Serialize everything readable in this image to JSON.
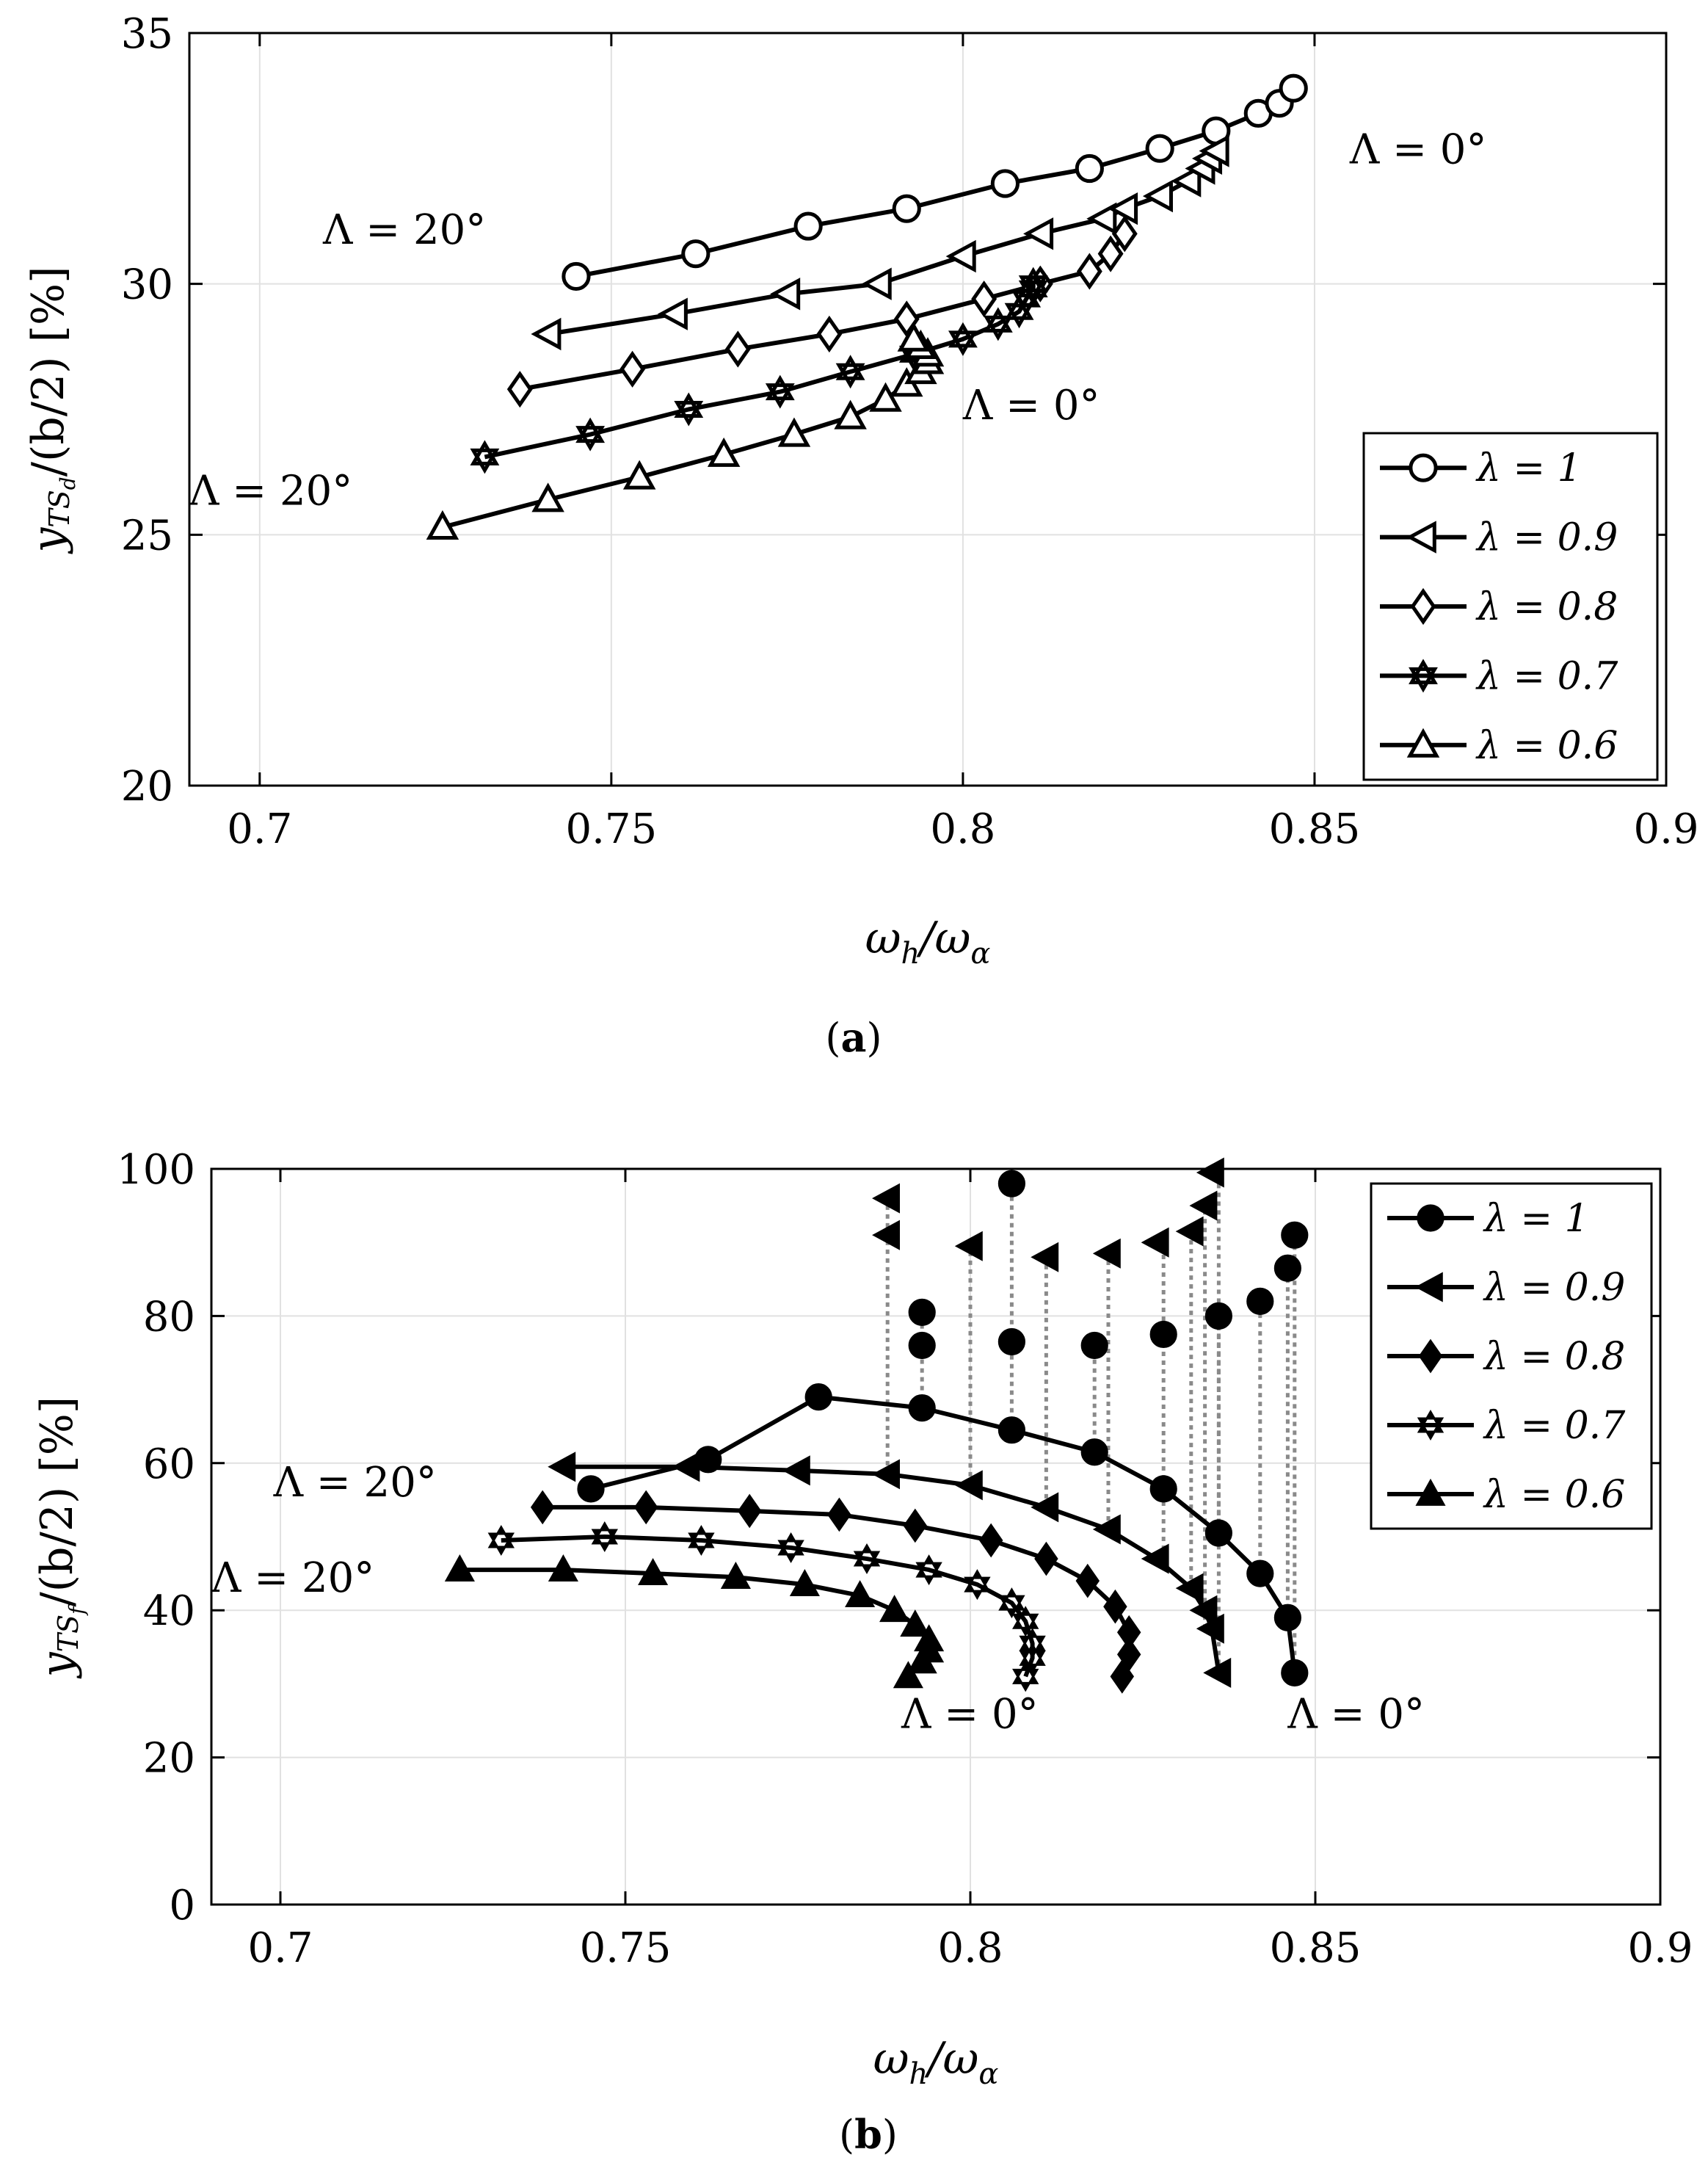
{
  "chart_data": [
    {
      "id": "a",
      "type": "line",
      "caption_label": "a",
      "xlabel": "ω_h/ω_α",
      "ylabel": "y_TS_d/(b/2) [%]",
      "xlim": [
        0.69,
        0.9
      ],
      "ylim": [
        20,
        35
      ],
      "xticks": [
        "0.7",
        "0.75",
        "0.8",
        "0.85",
        "0.9"
      ],
      "xtick_values": [
        0.7,
        0.75,
        0.8,
        0.85,
        0.9
      ],
      "yticks": [
        "20",
        "25",
        "30",
        "35"
      ],
      "ytick_values": [
        20,
        25,
        30,
        35
      ],
      "grid": true,
      "legend_position": "bottom-right",
      "annotations": [
        {
          "text": "Λ = 20°",
          "x": 0.709,
          "y": 30.8
        },
        {
          "text": "Λ = 0°",
          "x": 0.855,
          "y": 32.4
        },
        {
          "text": "Λ = 0°",
          "x": 0.8,
          "y": 27.3
        },
        {
          "text": "Λ = 20°",
          "x": 0.69,
          "y": 25.6
        }
      ],
      "series": [
        {
          "name": "λ = 1",
          "marker": "circle",
          "filled": false,
          "x": [
            0.745,
            0.762,
            0.778,
            0.792,
            0.806,
            0.818,
            0.828,
            0.836,
            0.842,
            0.845,
            0.847
          ],
          "y": [
            30.15,
            30.6,
            31.15,
            31.5,
            32.0,
            32.3,
            32.7,
            33.05,
            33.4,
            33.6,
            33.9
          ]
        },
        {
          "name": "λ = 0.9",
          "marker": "triangle-left",
          "filled": false,
          "x": [
            0.741,
            0.759,
            0.775,
            0.788,
            0.8,
            0.811,
            0.82,
            0.823,
            0.828,
            0.832,
            0.834,
            0.835,
            0.836
          ],
          "y": [
            29.0,
            29.4,
            29.8,
            30.0,
            30.55,
            31.0,
            31.3,
            31.5,
            31.75,
            32.05,
            32.3,
            32.5,
            32.65
          ]
        },
        {
          "name": "λ = 0.8",
          "marker": "diamond",
          "filled": false,
          "x": [
            0.737,
            0.753,
            0.768,
            0.781,
            0.792,
            0.803,
            0.811,
            0.818,
            0.821,
            0.823
          ],
          "y": [
            27.9,
            28.3,
            28.7,
            29.0,
            29.3,
            29.7,
            30.0,
            30.25,
            30.6,
            31.0
          ]
        },
        {
          "name": "λ = 0.7",
          "marker": "hexagram",
          "filled": false,
          "x": [
            0.732,
            0.747,
            0.761,
            0.774,
            0.784,
            0.793,
            0.8,
            0.805,
            0.808,
            0.809,
            0.81,
            0.81
          ],
          "y": [
            26.55,
            27.0,
            27.5,
            27.85,
            28.25,
            28.6,
            28.9,
            29.2,
            29.45,
            29.7,
            29.9,
            30.0
          ]
        },
        {
          "name": "λ = 0.6",
          "marker": "triangle-up",
          "filled": false,
          "x": [
            0.726,
            0.741,
            0.754,
            0.766,
            0.776,
            0.784,
            0.789,
            0.792,
            0.794,
            0.795,
            0.795,
            0.794,
            0.793
          ],
          "y": [
            25.15,
            25.7,
            26.15,
            26.6,
            27.0,
            27.35,
            27.7,
            28.0,
            28.25,
            28.45,
            28.6,
            28.75,
            28.9
          ]
        }
      ]
    },
    {
      "id": "b",
      "type": "line",
      "caption_label": "b",
      "xlabel": "ω_h/ω_α",
      "ylabel": "y_TS_f/(b/2) [%]",
      "xlim": [
        0.69,
        0.9
      ],
      "ylim": [
        0,
        100
      ],
      "xticks": [
        "0.7",
        "0.75",
        "0.8",
        "0.85",
        "0.9"
      ],
      "xtick_values": [
        0.7,
        0.75,
        0.8,
        0.85,
        0.9
      ],
      "yticks": [
        "0",
        "20",
        "40",
        "60",
        "80",
        "100"
      ],
      "ytick_values": [
        0,
        20,
        40,
        60,
        80,
        100
      ],
      "grid": true,
      "legend_position": "top-right",
      "annotations": [
        {
          "text": "Λ = 20°",
          "x": 0.699,
          "y": 55.5
        },
        {
          "text": "Λ = 20°",
          "x": 0.69,
          "y": 42.5
        },
        {
          "text": "Λ = 0°",
          "x": 0.79,
          "y": 24.0
        },
        {
          "text": "Λ = 0°",
          "x": 0.846,
          "y": 24.0
        }
      ],
      "series": [
        {
          "name": "λ = 1",
          "marker": "circle",
          "filled": true,
          "x": [
            0.745,
            0.762,
            0.778,
            0.793,
            0.806,
            0.818,
            0.828,
            0.836,
            0.842,
            0.846,
            0.847
          ],
          "y": [
            56.5,
            60.5,
            69.0,
            67.5,
            64.5,
            61.5,
            56.5,
            50.5,
            45.0,
            39.0,
            31.5
          ]
        },
        {
          "name": "λ = 0.9",
          "marker": "triangle-left",
          "filled": true,
          "x": [
            0.741,
            0.759,
            0.775,
            0.788,
            0.8,
            0.811,
            0.82,
            0.827,
            0.832,
            0.834,
            0.835,
            0.836
          ],
          "y": [
            59.5,
            59.5,
            59.0,
            58.5,
            57.0,
            54.0,
            51.0,
            47.0,
            43.0,
            40.0,
            37.5,
            31.5
          ]
        },
        {
          "name": "λ = 0.8",
          "marker": "diamond",
          "filled": true,
          "x": [
            0.738,
            0.753,
            0.768,
            0.781,
            0.792,
            0.803,
            0.811,
            0.817,
            0.821,
            0.823,
            0.823,
            0.822
          ],
          "y": [
            54.0,
            54.0,
            53.5,
            53.0,
            51.5,
            49.5,
            47.0,
            44.0,
            40.5,
            37.0,
            34.0,
            31.0
          ]
        },
        {
          "name": "λ = 0.7",
          "marker": "hexagram",
          "filled": true,
          "x": [
            0.732,
            0.747,
            0.761,
            0.774,
            0.785,
            0.794,
            0.801,
            0.806,
            0.808,
            0.809,
            0.809,
            0.808
          ],
          "y": [
            49.5,
            50.0,
            49.5,
            48.5,
            47.0,
            45.5,
            43.5,
            41.0,
            38.5,
            35.5,
            33.5,
            31.0
          ]
        },
        {
          "name": "λ = 0.6",
          "marker": "triangle-up",
          "filled": true,
          "x": [
            0.726,
            0.741,
            0.754,
            0.766,
            0.776,
            0.784,
            0.789,
            0.792,
            0.794,
            0.794,
            0.793,
            0.791
          ],
          "y": [
            45.5,
            45.5,
            45.0,
            44.5,
            43.5,
            42.0,
            40.0,
            38.0,
            36.0,
            34.5,
            33.0,
            31.0
          ]
        }
      ],
      "detached_points": [
        {
          "series": "λ = 1",
          "x": 0.793,
          "y": 80.5
        },
        {
          "series": "λ = 1",
          "x": 0.793,
          "y": 76.0
        },
        {
          "series": "λ = 1",
          "x": 0.806,
          "y": 98.0
        },
        {
          "series": "λ = 1",
          "x": 0.806,
          "y": 76.5
        },
        {
          "series": "λ = 1",
          "x": 0.818,
          "y": 76.0
        },
        {
          "series": "λ = 1",
          "x": 0.828,
          "y": 77.5
        },
        {
          "series": "λ = 1",
          "x": 0.836,
          "y": 80.0
        },
        {
          "series": "λ = 1",
          "x": 0.842,
          "y": 82.0
        },
        {
          "series": "λ = 1",
          "x": 0.846,
          "y": 86.5
        },
        {
          "series": "λ = 1",
          "x": 0.847,
          "y": 91.0
        },
        {
          "series": "λ = 0.9",
          "x": 0.788,
          "y": 96.0
        },
        {
          "series": "λ = 0.9",
          "x": 0.788,
          "y": 91.0
        },
        {
          "series": "λ = 0.9",
          "x": 0.8,
          "y": 89.5
        },
        {
          "series": "λ = 0.9",
          "x": 0.811,
          "y": 88.0
        },
        {
          "series": "λ = 0.9",
          "x": 0.82,
          "y": 88.5
        },
        {
          "series": "λ = 0.9",
          "x": 0.827,
          "y": 90.0
        },
        {
          "series": "λ = 0.9",
          "x": 0.832,
          "y": 91.5
        },
        {
          "series": "λ = 0.9",
          "x": 0.834,
          "y": 95.0
        },
        {
          "series": "λ = 0.9",
          "x": 0.835,
          "y": 99.5
        }
      ],
      "dotted_connectors": [
        {
          "x": 0.788,
          "y_from": 58.5,
          "y_to": 96.0
        },
        {
          "x": 0.793,
          "y_from": 67.5,
          "y_to": 80.5
        },
        {
          "x": 0.8,
          "y_from": 57.0,
          "y_to": 89.5
        },
        {
          "x": 0.806,
          "y_from": 64.5,
          "y_to": 98.0
        },
        {
          "x": 0.811,
          "y_from": 54.0,
          "y_to": 88.0
        },
        {
          "x": 0.818,
          "y_from": 61.5,
          "y_to": 76.0
        },
        {
          "x": 0.82,
          "y_from": 51.0,
          "y_to": 88.5
        },
        {
          "x": 0.828,
          "y_from": 47.0,
          "y_to": 90.0
        },
        {
          "x": 0.832,
          "y_from": 43.0,
          "y_to": 91.5
        },
        {
          "x": 0.834,
          "y_from": 37.5,
          "y_to": 95.0
        },
        {
          "x": 0.836,
          "y_from": 31.5,
          "y_to": 99.5
        },
        {
          "x": 0.836,
          "y_from": 50.5,
          "y_to": 80.0
        },
        {
          "x": 0.842,
          "y_from": 45.0,
          "y_to": 82.0
        },
        {
          "x": 0.846,
          "y_from": 39.0,
          "y_to": 86.5
        },
        {
          "x": 0.847,
          "y_from": 31.5,
          "y_to": 91.0
        }
      ]
    }
  ]
}
